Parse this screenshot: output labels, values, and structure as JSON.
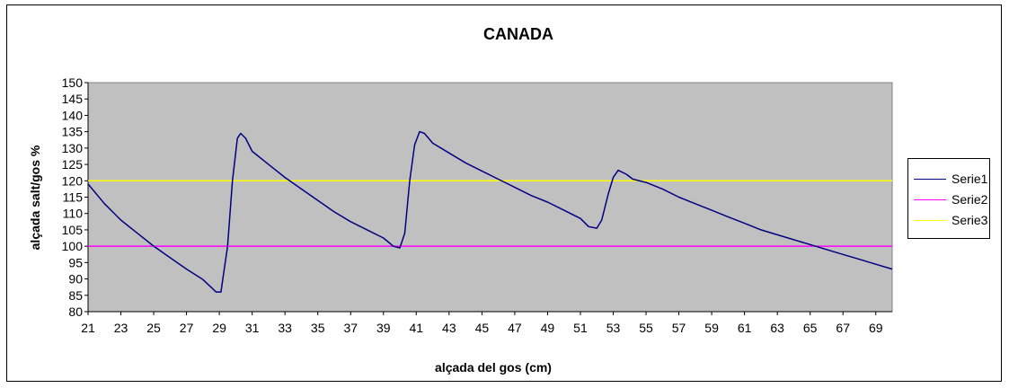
{
  "chart_data": {
    "type": "line",
    "title": "CANADA",
    "xlabel": "alçada del gos (cm)",
    "ylabel": "alçada salt/gos %",
    "xlim": [
      21,
      70
    ],
    "ylim": [
      80,
      150
    ],
    "y_ticks": [
      80,
      85,
      90,
      95,
      100,
      105,
      110,
      115,
      120,
      125,
      130,
      135,
      140,
      145,
      150
    ],
    "x_ticks": [
      21,
      23,
      25,
      27,
      29,
      31,
      33,
      35,
      37,
      39,
      41,
      43,
      45,
      47,
      49,
      51,
      53,
      55,
      57,
      59,
      61,
      63,
      65,
      67,
      69
    ],
    "plot_background": "#c0c0c0",
    "legend_position": "right",
    "series": [
      {
        "name": "Serie1",
        "color": "#000080",
        "points": [
          [
            21,
            119
          ],
          [
            22,
            113
          ],
          [
            23,
            108
          ],
          [
            24,
            104
          ],
          [
            25,
            100
          ],
          [
            26,
            96.5
          ],
          [
            27,
            93
          ],
          [
            28,
            89.8
          ],
          [
            28.8,
            86
          ],
          [
            29.1,
            86
          ],
          [
            29.5,
            100
          ],
          [
            29.8,
            120
          ],
          [
            30.1,
            133
          ],
          [
            30.3,
            134.5
          ],
          [
            30.6,
            133
          ],
          [
            31,
            129
          ],
          [
            32,
            125
          ],
          [
            33,
            121
          ],
          [
            34,
            117.5
          ],
          [
            35,
            114
          ],
          [
            36,
            110.5
          ],
          [
            37,
            107.5
          ],
          [
            38,
            105
          ],
          [
            39,
            102.5
          ],
          [
            39.6,
            100
          ],
          [
            40,
            99.5
          ],
          [
            40.3,
            104
          ],
          [
            40.6,
            120
          ],
          [
            40.9,
            131
          ],
          [
            41.2,
            135
          ],
          [
            41.5,
            134.5
          ],
          [
            42,
            131.5
          ],
          [
            43,
            128.5
          ],
          [
            44,
            125.5
          ],
          [
            45,
            123
          ],
          [
            46,
            120.5
          ],
          [
            47,
            118
          ],
          [
            48,
            115.5
          ],
          [
            49,
            113.5
          ],
          [
            50,
            111
          ],
          [
            51,
            108.5
          ],
          [
            51.5,
            106
          ],
          [
            52,
            105.5
          ],
          [
            52.3,
            108
          ],
          [
            52.7,
            116
          ],
          [
            53,
            121
          ],
          [
            53.3,
            123.2
          ],
          [
            53.8,
            122
          ],
          [
            54.2,
            120.5
          ],
          [
            55,
            119.5
          ],
          [
            56,
            117.5
          ],
          [
            57,
            115
          ],
          [
            58,
            113
          ],
          [
            59,
            111
          ],
          [
            60,
            109
          ],
          [
            61,
            107
          ],
          [
            62,
            105
          ],
          [
            63,
            103.5
          ],
          [
            64,
            102
          ],
          [
            65,
            100.5
          ],
          [
            66,
            99
          ],
          [
            67,
            97.5
          ],
          [
            68,
            96
          ],
          [
            69,
            94.5
          ],
          [
            70,
            93
          ]
        ]
      },
      {
        "name": "Serie2",
        "color": "#ff00ff",
        "points": [
          [
            21,
            100
          ],
          [
            70,
            100
          ]
        ]
      },
      {
        "name": "Serie3",
        "color": "#ffff00",
        "points": [
          [
            21,
            120
          ],
          [
            70,
            120
          ]
        ]
      }
    ]
  }
}
